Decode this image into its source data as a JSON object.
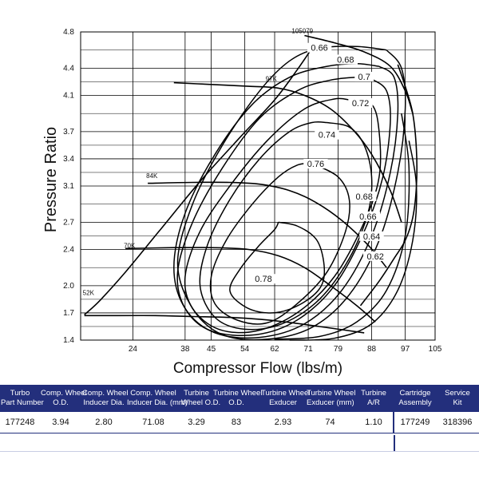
{
  "chart_data": {
    "type": "line",
    "xlabel": "Compressor Flow (lbs/m)",
    "ylabel": "Pressure Ratio",
    "xlim": [
      10,
      105
    ],
    "ylim": [
      1.4,
      4.8
    ],
    "x_ticks": [
      24,
      38,
      45,
      54,
      62,
      71,
      79,
      88,
      97,
      105
    ],
    "y_ticks": [
      1.4,
      1.7,
      2.0,
      2.4,
      2.7,
      3.1,
      3.4,
      3.7,
      4.1,
      4.4,
      4.8
    ],
    "grid": true,
    "surge_line": {
      "x": [
        11,
        15,
        22,
        31,
        42,
        53,
        62,
        68,
        72
      ],
      "y": [
        1.68,
        1.83,
        2.15,
        2.6,
        3.15,
        3.65,
        4.05,
        4.38,
        4.62
      ]
    },
    "choke_line": {
      "x": [
        95,
        97,
        99,
        100,
        100,
        99,
        97,
        94,
        90,
        85
      ],
      "y": [
        4.44,
        4.2,
        3.9,
        3.5,
        3.1,
        2.75,
        2.5,
        2.3,
        2.05,
        1.78
      ]
    },
    "speed_lines": [
      {
        "name": "52K",
        "x": [
          11,
          20,
          30,
          40,
          50,
          58,
          65,
          74,
          86
        ],
        "y": [
          1.67,
          1.67,
          1.67,
          1.66,
          1.65,
          1.63,
          1.6,
          1.55,
          1.48
        ]
      },
      {
        "name": "70K",
        "x": [
          22,
          35,
          45,
          55,
          63,
          70,
          77,
          84,
          89
        ],
        "y": [
          2.41,
          2.42,
          2.42,
          2.4,
          2.33,
          2.2,
          2.0,
          1.78,
          1.6
        ]
      },
      {
        "name": "84K",
        "x": [
          28,
          40,
          50,
          58,
          66,
          73,
          80,
          87,
          92
        ],
        "y": [
          3.13,
          3.14,
          3.14,
          3.12,
          3.05,
          2.92,
          2.72,
          2.45,
          2.2
        ]
      },
      {
        "name": "97K",
        "x": [
          35,
          45,
          55,
          63,
          70,
          77,
          83,
          88,
          93,
          96
        ],
        "y": [
          4.24,
          4.22,
          4.2,
          4.18,
          4.1,
          3.95,
          3.72,
          3.45,
          3.05,
          2.7
        ]
      },
      {
        "name": "105079",
        "x": [
          70,
          78,
          86,
          93,
          97,
          99
        ],
        "y": [
          4.76,
          4.68,
          4.58,
          4.42,
          4.15,
          3.9
        ]
      }
    ],
    "efficiency_islands": [
      {
        "label": "0.78",
        "x": [
          63,
          68,
          73,
          75,
          75,
          72,
          66,
          60,
          54,
          50,
          53,
          58,
          62
        ],
        "y": [
          2.7,
          2.66,
          2.52,
          2.3,
          2.05,
          1.88,
          1.74,
          1.7,
          1.77,
          1.95,
          2.2,
          2.45,
          2.62
        ]
      },
      {
        "label": "0.76",
        "x": [
          72,
          79,
          82,
          81,
          76,
          68,
          60,
          52,
          46,
          45,
          49,
          56,
          63,
          68
        ],
        "y": [
          3.35,
          3.2,
          2.95,
          2.6,
          2.15,
          1.8,
          1.59,
          1.62,
          1.8,
          2.1,
          2.5,
          2.9,
          3.2,
          3.33
        ]
      },
      {
        "label": "0.74",
        "x": [
          76,
          82,
          86,
          88,
          87,
          82,
          74,
          64,
          54,
          46,
          42,
          44,
          50,
          58,
          66,
          72
        ],
        "y": [
          3.8,
          3.75,
          3.55,
          3.2,
          2.8,
          2.3,
          1.85,
          1.58,
          1.52,
          1.65,
          2.0,
          2.45,
          2.95,
          3.4,
          3.7,
          3.8
        ]
      },
      {
        "label": "0.72",
        "x": [
          82,
          88,
          90,
          90,
          86,
          78,
          68,
          57,
          47,
          40,
          38,
          42,
          50,
          60,
          70,
          78
        ],
        "y": [
          4.05,
          4.0,
          3.7,
          3.2,
          2.7,
          2.1,
          1.7,
          1.5,
          1.52,
          1.75,
          2.1,
          2.6,
          3.1,
          3.6,
          3.95,
          4.06
        ]
      },
      {
        "label": "0.7",
        "x": [
          88,
          92,
          93,
          91,
          86,
          78,
          68,
          57,
          45,
          38,
          36,
          40,
          48,
          58,
          68,
          76,
          84
        ],
        "y": [
          4.28,
          4.15,
          3.8,
          3.2,
          2.6,
          2.0,
          1.62,
          1.46,
          1.5,
          1.75,
          2.15,
          2.7,
          3.3,
          3.85,
          4.15,
          4.26,
          4.3
        ]
      },
      {
        "label": "0.68",
        "x": [
          90,
          94,
          95,
          93,
          88,
          80,
          70,
          58,
          46,
          38,
          35,
          38,
          46,
          56,
          66,
          76,
          84
        ],
        "y": [
          4.42,
          4.3,
          3.9,
          3.25,
          2.55,
          1.95,
          1.58,
          1.43,
          1.48,
          1.75,
          2.2,
          2.8,
          3.45,
          4.0,
          4.3,
          4.42,
          4.45
        ]
      },
      {
        "label": "0.66",
        "x": [
          92,
          96,
          97,
          95,
          90,
          82,
          72,
          60,
          48,
          40,
          36,
          40,
          48,
          58,
          66,
          74,
          84
        ],
        "y": [
          4.6,
          4.4,
          3.95,
          3.25,
          2.5,
          1.9,
          1.54,
          1.41,
          1.46,
          1.75,
          2.25,
          2.9,
          3.55,
          4.15,
          4.48,
          4.62,
          4.64
        ]
      },
      {
        "label": "0.64",
        "x": [
          96,
          98,
          97,
          92,
          84,
          74,
          62
        ],
        "y": [
          3.9,
          3.3,
          2.55,
          1.95,
          1.6,
          1.44,
          1.41
        ]
      },
      {
        "label": "0.62",
        "x": [
          98,
          100,
          99,
          95,
          88,
          78,
          66
        ],
        "y": [
          3.6,
          3.1,
          2.5,
          1.95,
          1.58,
          1.42,
          1.4
        ]
      }
    ]
  },
  "efficiency_labels": [
    {
      "text": "0.66",
      "x": 74,
      "y": 4.6
    },
    {
      "text": "0.68",
      "x": 81,
      "y": 4.47
    },
    {
      "text": "0.7",
      "x": 86,
      "y": 4.28
    },
    {
      "text": "0.72",
      "x": 85,
      "y": 3.99
    },
    {
      "text": "0.74",
      "x": 76,
      "y": 3.64
    },
    {
      "text": "0.76",
      "x": 73,
      "y": 3.32
    },
    {
      "text": "0.78",
      "x": 59,
      "y": 2.05
    },
    {
      "text": "0.68",
      "x": 86,
      "y": 2.96
    },
    {
      "text": "0.66",
      "x": 87,
      "y": 2.74
    },
    {
      "text": "0.64",
      "x": 88,
      "y": 2.52
    },
    {
      "text": "0.62",
      "x": 89,
      "y": 2.3
    }
  ],
  "speed_labels": [
    {
      "text": "52K",
      "x": 11,
      "y": 1.88
    },
    {
      "text": "70K",
      "x": 22,
      "y": 2.4
    },
    {
      "text": "84K",
      "x": 28,
      "y": 3.17
    },
    {
      "text": "97K",
      "x": 60,
      "y": 4.24
    },
    {
      "text": "105079",
      "x": 67,
      "y": 4.77
    }
  ],
  "table": {
    "headers": [
      [
        "Turbo",
        "Part Number"
      ],
      [
        "Comp. Wheel",
        "O.D."
      ],
      [
        "Comp. Wheel",
        "Inducer Dia."
      ],
      [
        "Comp. Wheel",
        "Inducer Dia. (mm)"
      ],
      [
        "Turbine",
        "Wheel O.D."
      ],
      [
        "Turbine Wheel",
        "O.D."
      ],
      [
        "Turbine Wheel",
        "Exducer"
      ],
      [
        "Turbine Wheel",
        "Exducer (mm)"
      ],
      [
        "Turbine",
        "A/R"
      ],
      [
        "Cartridge",
        "Assembly"
      ],
      [
        "Service",
        "Kit"
      ]
    ],
    "row": [
      "177248",
      "3.94",
      "2.80",
      "71.08",
      "3.29",
      "83",
      "2.93",
      "74",
      "1.10",
      "177249",
      "318396"
    ]
  }
}
